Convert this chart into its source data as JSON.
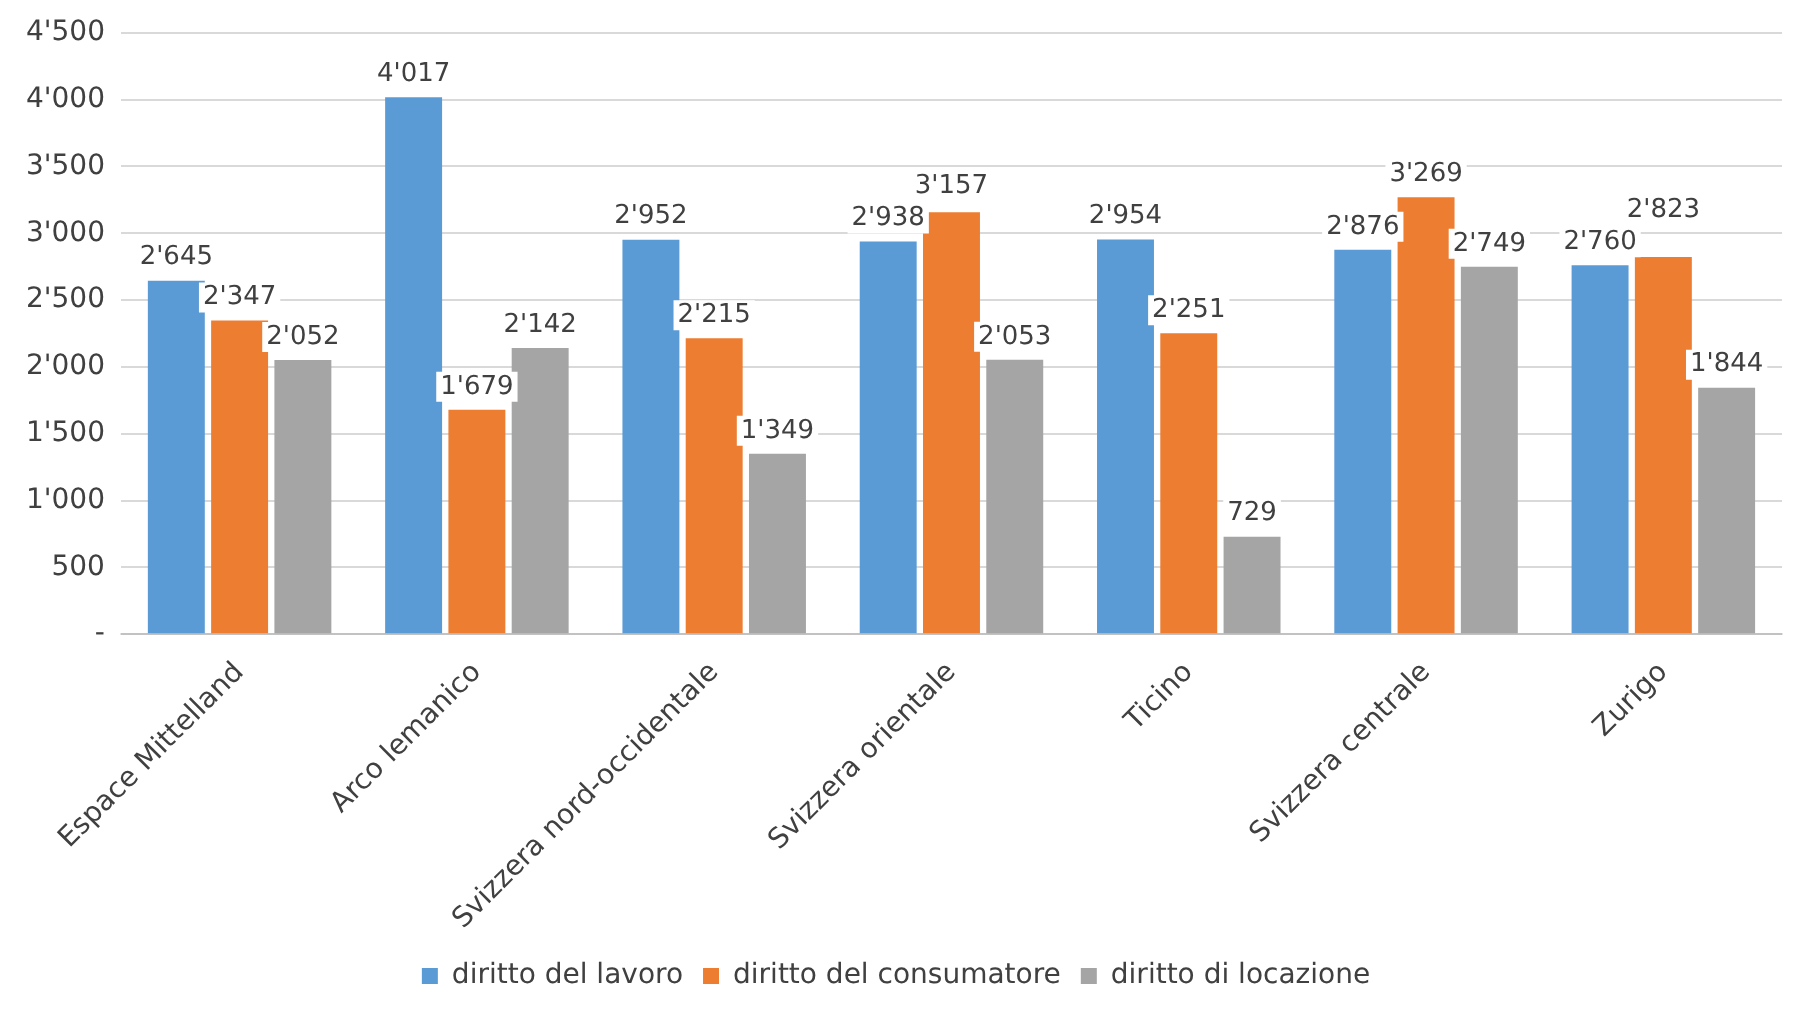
{
  "chart_data": {
    "type": "bar",
    "categories": [
      "Espace Mittelland",
      "Arco lemanico",
      "Svizzera nord-occidentale",
      "Svizzera orientale",
      "Ticino",
      "Svizzera centrale",
      "Zurigo"
    ],
    "series": [
      {
        "name": "diritto del lavoro",
        "color": "#5b9bd5",
        "values": [
          2645,
          4017,
          2952,
          2938,
          2954,
          2876,
          2760
        ],
        "value_labels": [
          "2'645",
          "4'017",
          "2'952",
          "2'938",
          "2'954",
          "2'876",
          "2'760"
        ]
      },
      {
        "name": "diritto del consumatore",
        "color": "#ed7d31",
        "values": [
          2347,
          1679,
          2215,
          3157,
          2251,
          3269,
          2823
        ],
        "value_labels": [
          "2'347",
          "1'679",
          "2'215",
          "3'157",
          "2'251",
          "3'269",
          "2'823"
        ]
      },
      {
        "name": "diritto di locazione",
        "color": "#a5a5a5",
        "values": [
          2052,
          2142,
          1349,
          2053,
          729,
          2749,
          1844
        ],
        "value_labels": [
          "2'052",
          "2'142",
          "1'349",
          "2'053",
          "729",
          "2'749",
          "1'844"
        ]
      }
    ],
    "ylim": [
      0,
      4500
    ],
    "yticks": [
      {
        "value": 0,
        "label": "-"
      },
      500,
      {
        "value": 1000,
        "label": "1'000"
      },
      {
        "value": 1500,
        "label": "1'500"
      },
      {
        "value": 2000,
        "label": "2'000"
      },
      {
        "value": 2500,
        "label": "2'500"
      },
      {
        "value": 3000,
        "label": "3'000"
      },
      {
        "value": 3500,
        "label": "3'500"
      },
      {
        "value": 4000,
        "label": "4'000"
      },
      {
        "value": 4500,
        "label": "4'500"
      }
    ],
    "grid": "y",
    "legend": "bottom"
  }
}
